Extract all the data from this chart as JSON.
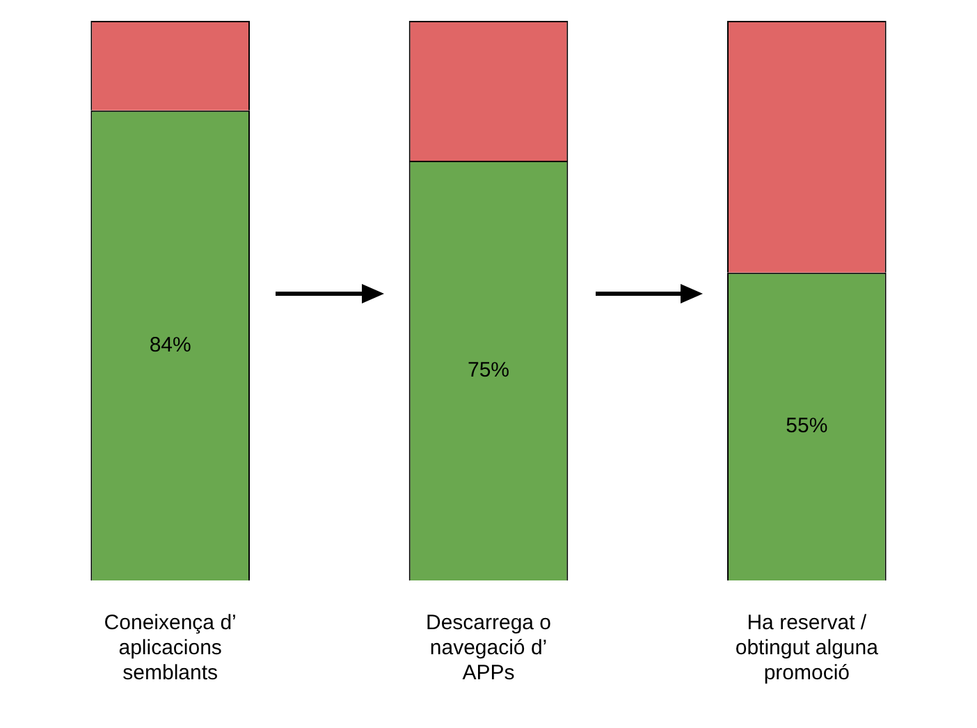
{
  "chart_data": {
    "type": "bar",
    "stacked": true,
    "categories": [
      "Coneixença d’ aplicacions semblants",
      "Descarrega o navegació d’ APPs",
      "Ha reservat / obtingut alguna promoció"
    ],
    "series": [
      {
        "color": "#6aa84f",
        "values": [
          84,
          75,
          55
        ],
        "value_labels": [
          "84%",
          "75%",
          "55%"
        ]
      },
      {
        "color": "#e06666",
        "values": [
          16,
          25,
          45
        ]
      }
    ],
    "ylim": [
      0,
      100
    ],
    "tick_labels": "x",
    "grid": false,
    "legend": false
  }
}
